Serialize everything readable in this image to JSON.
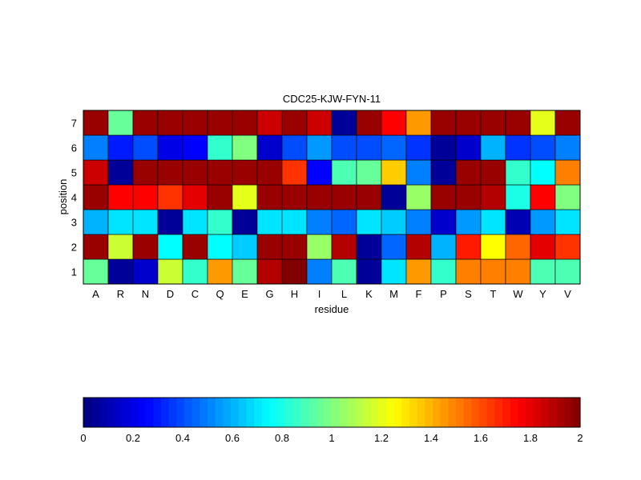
{
  "chart_data": {
    "type": "heatmap",
    "title": "CDC25-KJW-FYN-11",
    "xlabel": "residue",
    "ylabel": "position",
    "x_categories": [
      "A",
      "R",
      "N",
      "D",
      "C",
      "Q",
      "E",
      "G",
      "H",
      "I",
      "L",
      "K",
      "M",
      "F",
      "P",
      "S",
      "T",
      "W",
      "Y",
      "V"
    ],
    "y_categories": [
      "1",
      "2",
      "3",
      "4",
      "5",
      "6",
      "7"
    ],
    "colormap": "jet",
    "clim": [
      0,
      2
    ],
    "colorbar": {
      "placement": "bottom",
      "ticks": [
        "0",
        "0.2",
        "0.4",
        "0.6",
        "0.8",
        "1",
        "1.2",
        "1.4",
        "1.6",
        "1.8",
        "2"
      ]
    },
    "values": [
      [
        0.95,
        0.05,
        0.15,
        1.15,
        0.85,
        1.45,
        0.95,
        1.9,
        2.0,
        0.5,
        0.9,
        0.05,
        0.7,
        1.45,
        0.85,
        1.5,
        1.5,
        1.5,
        0.9,
        0.9
      ],
      [
        1.95,
        1.15,
        1.95,
        0.75,
        1.95,
        0.75,
        0.65,
        1.95,
        1.95,
        1.05,
        1.9,
        0.05,
        0.45,
        1.9,
        0.6,
        1.7,
        1.25,
        1.55,
        1.8,
        1.65
      ],
      [
        0.6,
        0.7,
        0.7,
        0.05,
        0.7,
        0.85,
        0.05,
        0.7,
        0.7,
        0.5,
        0.45,
        0.7,
        0.65,
        0.5,
        0.15,
        0.55,
        0.7,
        0.1,
        0.55,
        0.7
      ],
      [
        1.95,
        1.75,
        1.75,
        1.65,
        1.8,
        1.95,
        1.2,
        1.95,
        1.95,
        1.95,
        1.95,
        1.95,
        0.05,
        1.05,
        1.95,
        1.95,
        1.9,
        0.8,
        1.75,
        1.0
      ],
      [
        1.85,
        0.05,
        1.95,
        1.95,
        1.95,
        1.95,
        1.95,
        1.95,
        1.65,
        0.25,
        0.9,
        0.95,
        1.35,
        0.5,
        0.05,
        1.95,
        1.95,
        0.85,
        0.75,
        1.5
      ],
      [
        0.5,
        0.3,
        0.4,
        0.2,
        0.25,
        0.85,
        1.0,
        0.15,
        0.4,
        0.55,
        0.4,
        0.4,
        0.45,
        0.35,
        0.05,
        0.15,
        0.6,
        0.35,
        0.4,
        0.5
      ],
      [
        1.95,
        0.95,
        1.95,
        1.95,
        1.95,
        1.95,
        1.95,
        1.85,
        1.95,
        1.85,
        0.05,
        1.95,
        1.75,
        1.45,
        1.95,
        1.95,
        1.95,
        1.95,
        1.2,
        1.95
      ]
    ]
  }
}
